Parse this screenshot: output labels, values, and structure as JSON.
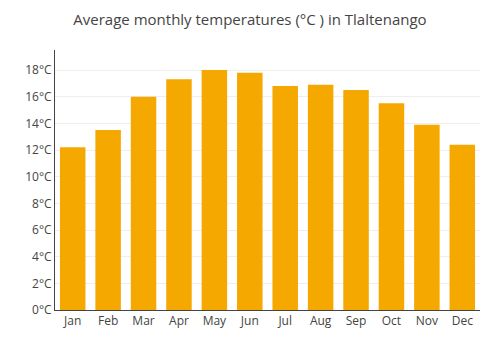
{
  "chart_data": {
    "type": "bar",
    "title": "Average monthly temperatures (°C ) in Tlaltenango",
    "categories": [
      "Jan",
      "Feb",
      "Mar",
      "Apr",
      "May",
      "Jun",
      "Jul",
      "Aug",
      "Sep",
      "Oct",
      "Nov",
      "Dec"
    ],
    "values": [
      12.2,
      13.5,
      16.0,
      17.3,
      18.0,
      17.8,
      16.8,
      16.9,
      16.5,
      15.5,
      13.9,
      12.4
    ],
    "color": "#F5A800",
    "ylim": [
      0,
      19.5
    ],
    "yticks": [
      {
        "value": 0,
        "label": "0°C"
      },
      {
        "value": 2,
        "label": "2°C"
      },
      {
        "value": 4,
        "label": "4°C"
      },
      {
        "value": 6,
        "label": "6°C"
      },
      {
        "value": 8,
        "label": "8°C"
      },
      {
        "value": 10,
        "label": "10°C"
      },
      {
        "value": 12,
        "label": "12°C"
      },
      {
        "value": 14,
        "label": "14°C"
      },
      {
        "value": 16,
        "label": "16°C"
      },
      {
        "value": 18,
        "label": "18°C"
      }
    ],
    "grid": true
  }
}
